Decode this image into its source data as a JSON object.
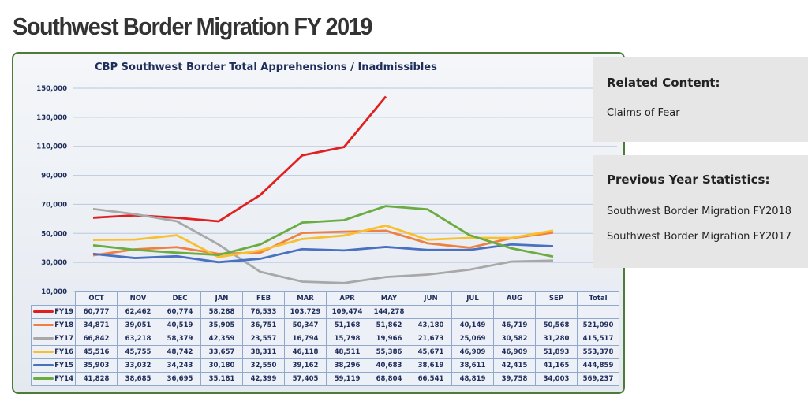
{
  "page_title": "Southwest Border Migration FY 2019",
  "related": {
    "heading": "Related Content:",
    "links": [
      "Claims of Fear"
    ]
  },
  "previous": {
    "heading": "Previous Year Statistics:",
    "links": [
      "Southwest Border Migration FY2018",
      "Southwest Border Migration FY2017"
    ]
  },
  "chart_data": {
    "type": "line",
    "title": "CBP Southwest Border Total Apprehensions / Inadmissibles",
    "categories": [
      "OCT",
      "NOV",
      "DEC",
      "JAN",
      "FEB",
      "MAR",
      "APR",
      "MAY",
      "JUN",
      "JUL",
      "AUG",
      "SEP"
    ],
    "total_label": "Total",
    "ylim": [
      10000,
      150000
    ],
    "yticks": [
      10000,
      30000,
      50000,
      70000,
      90000,
      110000,
      130000,
      150000
    ],
    "ytick_labels": [
      "10,000",
      "30,000",
      "50,000",
      "70,000",
      "90,000",
      "110,000",
      "130,000",
      "150,000"
    ],
    "grid": true,
    "series": [
      {
        "name": "FY19",
        "color": "#e02020",
        "values": [
          60777,
          62462,
          60774,
          58288,
          76533,
          103729,
          109474,
          144278,
          null,
          null,
          null,
          null
        ],
        "labels": [
          "60,777",
          "62,462",
          "60,774",
          "58,288",
          "76,533",
          "103,729",
          "109,474",
          "144,278",
          "",
          "",
          "",
          ""
        ],
        "total": ""
      },
      {
        "name": "FY18",
        "color": "#f08040",
        "values": [
          34871,
          39051,
          40519,
          35905,
          36751,
          50347,
          51168,
          51862,
          43180,
          40149,
          46719,
          50568
        ],
        "labels": [
          "34,871",
          "39,051",
          "40,519",
          "35,905",
          "36,751",
          "50,347",
          "51,168",
          "51,862",
          "43,180",
          "40,149",
          "46,719",
          "50,568"
        ],
        "total": "521,090"
      },
      {
        "name": "FY17",
        "color": "#a8a8a8",
        "values": [
          66842,
          63218,
          58379,
          42359,
          23557,
          16794,
          15798,
          19966,
          21673,
          25069,
          30582,
          31280
        ],
        "labels": [
          "66,842",
          "63,218",
          "58,379",
          "42,359",
          "23,557",
          "16,794",
          "15,798",
          "19,966",
          "21,673",
          "25,069",
          "30,582",
          "31,280"
        ],
        "total": "415,517"
      },
      {
        "name": "FY16",
        "color": "#f8c030",
        "values": [
          45516,
          45755,
          48742,
          33657,
          38311,
          46118,
          48511,
          55386,
          45671,
          46909,
          46909,
          51893
        ],
        "labels": [
          "45,516",
          "45,755",
          "48,742",
          "33,657",
          "38,311",
          "46,118",
          "48,511",
          "55,386",
          "45,671",
          "46,909",
          "46,909",
          "51,893"
        ],
        "total": "553,378"
      },
      {
        "name": "FY15",
        "color": "#4a70c0",
        "values": [
          35903,
          33032,
          34243,
          30180,
          32550,
          39162,
          38296,
          40683,
          38619,
          38611,
          42415,
          41165
        ],
        "labels": [
          "35,903",
          "33,032",
          "34,243",
          "30,180",
          "32,550",
          "39,162",
          "38,296",
          "40,683",
          "38,619",
          "38,611",
          "42,415",
          "41,165"
        ],
        "total": "444,859"
      },
      {
        "name": "FY14",
        "color": "#6aac40",
        "values": [
          41828,
          38685,
          36695,
          35181,
          42399,
          57405,
          59119,
          68804,
          66541,
          48819,
          39758,
          34003
        ],
        "labels": [
          "41,828",
          "38,685",
          "36,695",
          "35,181",
          "42,399",
          "57,405",
          "59,119",
          "68,804",
          "66,541",
          "48,819",
          "39,758",
          "34,003"
        ],
        "total": "569,237"
      }
    ]
  }
}
